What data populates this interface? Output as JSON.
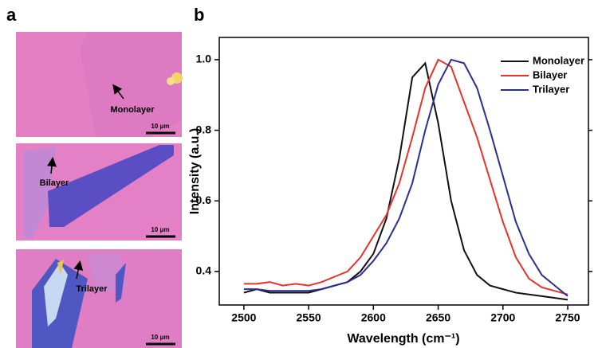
{
  "panel_labels": [
    "a",
    "b"
  ],
  "images": [
    {
      "label": "Monolayer",
      "scale_bar": "10 μm"
    },
    {
      "label": "Bilayer",
      "scale_bar": "10 μm"
    },
    {
      "label": "Trilayer",
      "scale_bar": "10 μm"
    }
  ],
  "chart_data": {
    "type": "line",
    "x_label": "Wavelength (cm⁻¹)",
    "y_label": "Intensity (a.u.)",
    "x": [
      2500,
      2510,
      2520,
      2530,
      2540,
      2550,
      2560,
      2570,
      2580,
      2590,
      2600,
      2610,
      2620,
      2630,
      2640,
      2650,
      2660,
      2670,
      2680,
      2690,
      2700,
      2710,
      2720,
      2730,
      2740,
      2750
    ],
    "series": [
      {
        "name": "Monolayer",
        "color": "#111111",
        "values": [
          0.34,
          0.35,
          0.34,
          0.34,
          0.34,
          0.34,
          0.35,
          0.36,
          0.37,
          0.4,
          0.45,
          0.55,
          0.72,
          0.95,
          0.99,
          0.82,
          0.6,
          0.46,
          0.39,
          0.36,
          0.35,
          0.34,
          0.335,
          0.33,
          0.325,
          0.32
        ]
      },
      {
        "name": "Bilayer",
        "color": "#e8322b",
        "values": [
          0.365,
          0.365,
          0.37,
          0.36,
          0.365,
          0.36,
          0.37,
          0.385,
          0.4,
          0.44,
          0.5,
          0.56,
          0.65,
          0.78,
          0.92,
          1.0,
          0.98,
          0.88,
          0.78,
          0.66,
          0.54,
          0.44,
          0.38,
          0.355,
          0.345,
          0.335
        ]
      },
      {
        "name": "Trilayer",
        "color": "#2b2f8f",
        "values": [
          0.35,
          0.35,
          0.345,
          0.345,
          0.345,
          0.345,
          0.35,
          0.36,
          0.37,
          0.39,
          0.43,
          0.48,
          0.55,
          0.65,
          0.8,
          0.93,
          1.0,
          0.99,
          0.92,
          0.8,
          0.67,
          0.54,
          0.45,
          0.39,
          0.36,
          0.33
        ]
      }
    ],
    "xlim": [
      2481,
      2766
    ],
    "ylim": [
      0.305,
      1.063
    ],
    "xticks": [
      2500,
      2550,
      2600,
      2650,
      2700,
      2750
    ],
    "yticks": [
      0.4,
      0.6,
      0.8,
      {
        "value": 1,
        "label": "1.0"
      }
    ],
    "legend": "upper right"
  }
}
